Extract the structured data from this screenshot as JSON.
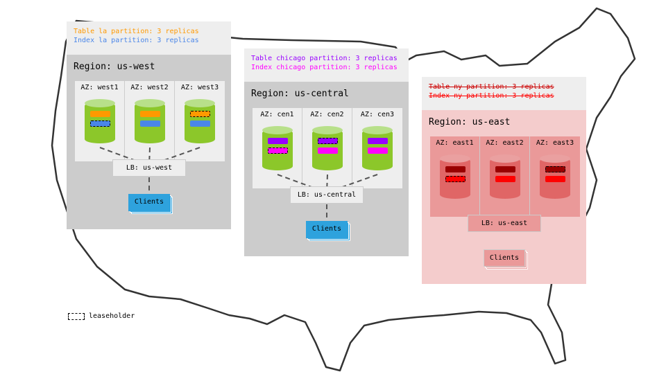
{
  "regions": [
    {
      "id": "west",
      "title": "Region: us-west",
      "lines": [
        {
          "text": "Table la partition: 3 replicas",
          "color": "#ff9900",
          "strike": false
        },
        {
          "text": "Index la partition: 3 replicas",
          "color": "#4a86e8",
          "strike": false
        }
      ],
      "azs": [
        "AZ: west1",
        "AZ: west2",
        "AZ: west3"
      ],
      "leaseholder": [
        [
          false,
          true
        ],
        [
          false,
          false
        ],
        [
          true,
          false
        ]
      ],
      "bar_colors": [
        "#ff9900",
        "#4a86e8"
      ],
      "lb": "LB: us-west",
      "clients": "Clients",
      "colors": {
        "region": "#cccccc",
        "az": "#eeeeee",
        "cyl": "#8cc72a",
        "cyl_top": "#b8e08a",
        "lb": "#eeeeee",
        "clients": "#2ea2dd"
      },
      "failed": false
    },
    {
      "id": "central",
      "title": "Region: us-central",
      "lines": [
        {
          "text": "Table chicago partition: 3 replicas",
          "color": "#9900ff",
          "strike": false
        },
        {
          "text": "Index chicago partition: 3 replicas",
          "color": "#ff00ff",
          "strike": false
        }
      ],
      "azs": [
        "AZ: cen1",
        "AZ: cen2",
        "AZ: cen3"
      ],
      "leaseholder": [
        [
          false,
          true
        ],
        [
          true,
          false
        ],
        [
          false,
          false
        ]
      ],
      "bar_colors": [
        "#9900ff",
        "#ff00ff"
      ],
      "lb": "LB: us-central",
      "clients": "Clients",
      "colors": {
        "region": "#cccccc",
        "az": "#eeeeee",
        "cyl": "#8cc72a",
        "cyl_top": "#b8e08a",
        "lb": "#eeeeee",
        "clients": "#2ea2dd"
      },
      "failed": false
    },
    {
      "id": "east",
      "title": "Region: us-east",
      "lines": [
        {
          "text": "Table ny partition: 3 replicas",
          "color": "#cc0000",
          "strike": true
        },
        {
          "text": "Index ny partition: 3 replicas",
          "color": "#ff0000",
          "strike": true
        }
      ],
      "azs": [
        "AZ: east1",
        "AZ: east2",
        "AZ: east3"
      ],
      "leaseholder": [
        [
          false,
          true
        ],
        [
          false,
          false
        ],
        [
          true,
          false
        ]
      ],
      "bar_colors": [
        "#990000",
        "#ff0000"
      ],
      "lb": "LB: us-east",
      "clients": "Clients",
      "colors": {
        "region": "#f4cccc",
        "az": "#ea9999",
        "cyl": "#e06666",
        "cyl_top": "#eaa0a0",
        "lb": "#ea9999",
        "clients": "#ea9999"
      },
      "failed": true
    }
  ],
  "legend": {
    "label": "leaseholder"
  }
}
